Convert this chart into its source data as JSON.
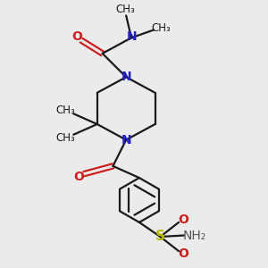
{
  "bg_color": "#ebebeb",
  "bond_color": "#1a1a1a",
  "N_color": "#2020cc",
  "O_color": "#cc2020",
  "S_color": "#b8b800",
  "H_color": "#555555",
  "line_width": 1.6,
  "font_size": 10,
  "fig_size": [
    3.0,
    3.0
  ],
  "dpi": 100,
  "xlim": [
    0,
    10
  ],
  "ylim": [
    0,
    10
  ]
}
